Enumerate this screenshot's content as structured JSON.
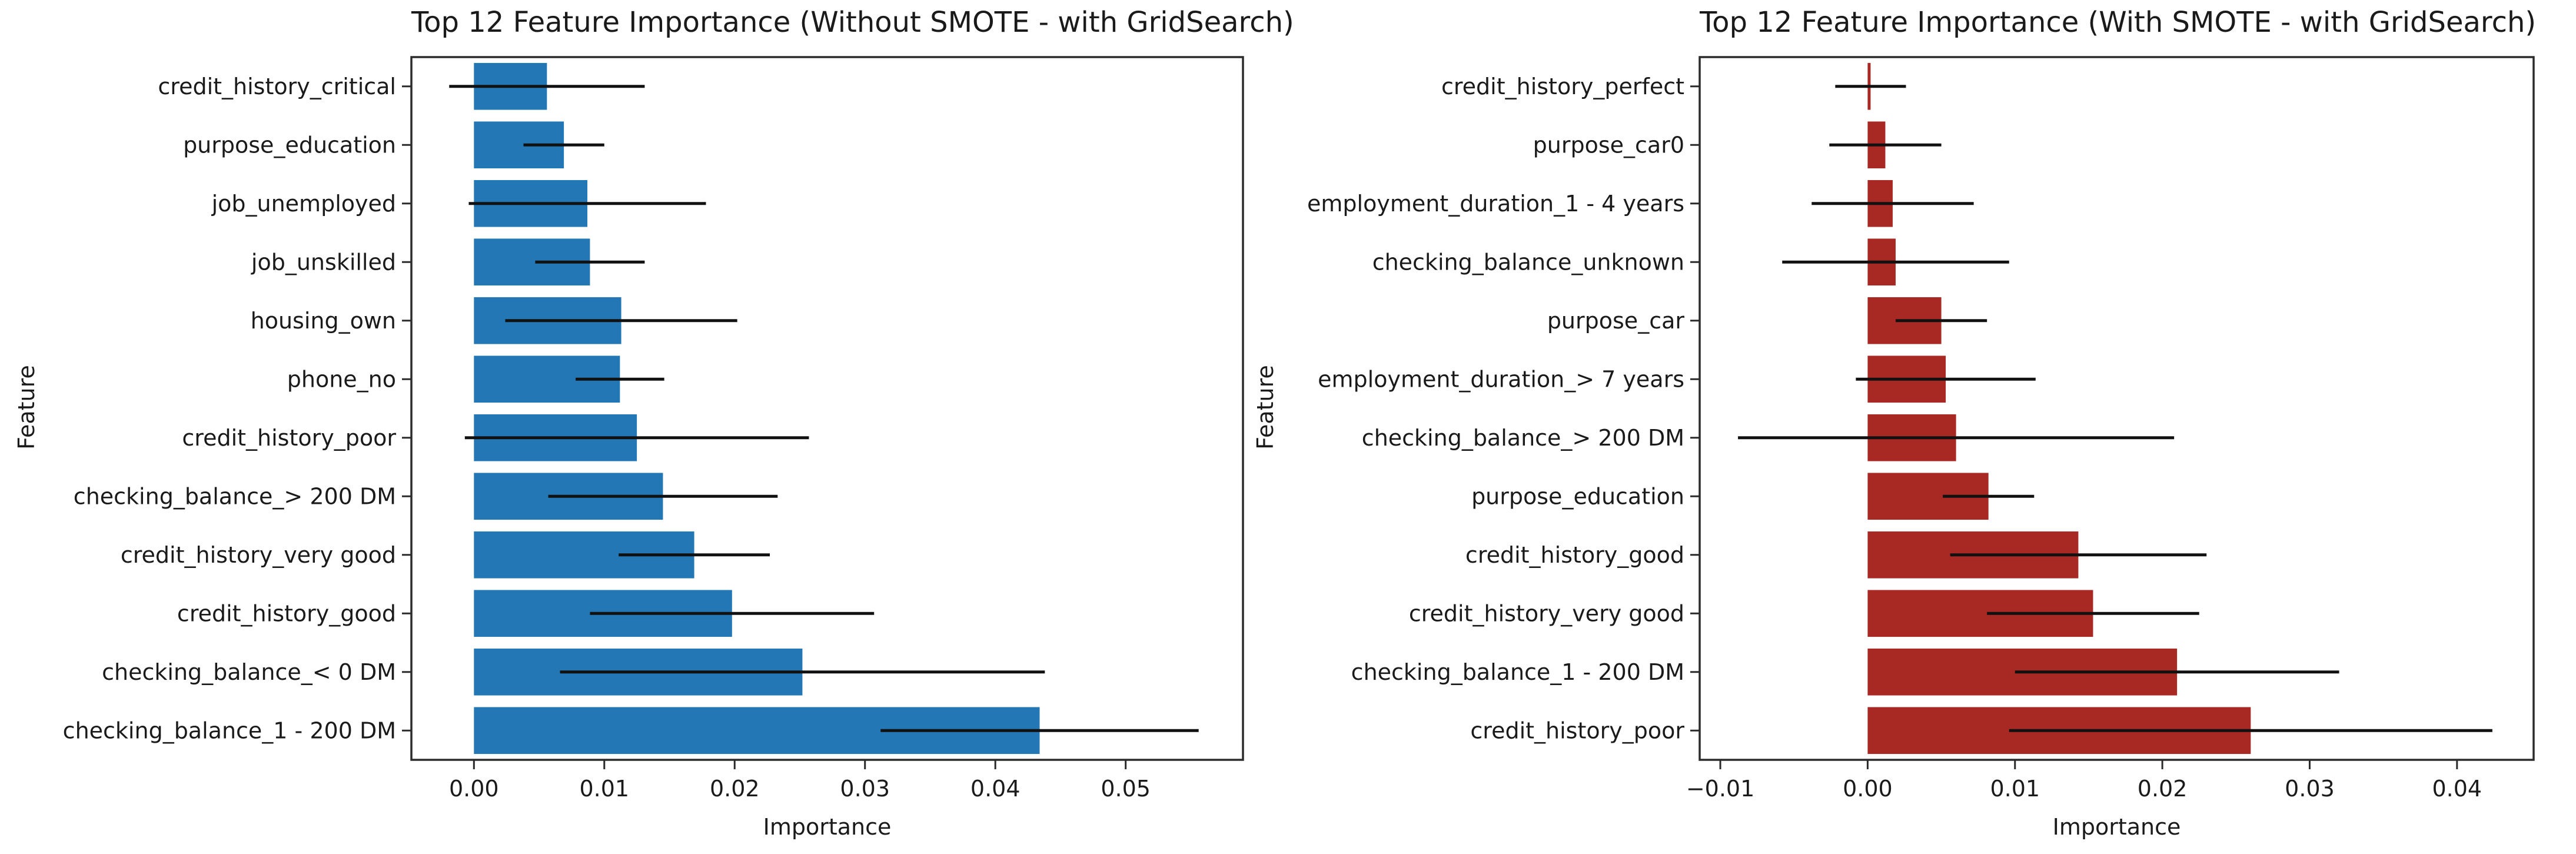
{
  "figure": {
    "background": "#ffffff",
    "text_color": "#1a1a1a",
    "spine_color": "#2b2b2b"
  },
  "chart_data": [
    {
      "type": "bar",
      "orientation": "horizontal",
      "title": "Top 12 Feature Importance (Without SMOTE - with GridSearch)",
      "xlabel": "Importance",
      "ylabel": "Feature",
      "bar_color": "#2277b4",
      "error_bar_color": "#111111",
      "grid": false,
      "legend": null,
      "xlim": [
        -0.0048,
        0.059
      ],
      "xticks": [
        {
          "value": 0.0,
          "label": "0.00"
        },
        {
          "value": 0.01,
          "label": "0.01"
        },
        {
          "value": 0.02,
          "label": "0.02"
        },
        {
          "value": 0.03,
          "label": "0.03"
        },
        {
          "value": 0.04,
          "label": "0.04"
        },
        {
          "value": 0.05,
          "label": "0.05"
        }
      ],
      "categories": [
        "credit_history_critical",
        "purpose_education",
        "job_unemployed",
        "job_unskilled",
        "housing_own",
        "phone_no",
        "credit_history_poor",
        "checking_balance_> 200 DM",
        "credit_history_very good",
        "credit_history_good",
        "checking_balance_< 0 DM",
        "checking_balance_1 - 200 DM"
      ],
      "values": [
        0.0056,
        0.0069,
        0.0087,
        0.0089,
        0.0113,
        0.0112,
        0.0125,
        0.0145,
        0.0169,
        0.0198,
        0.0252,
        0.0434
      ],
      "errors": [
        0.0075,
        0.0031,
        0.0091,
        0.0042,
        0.0089,
        0.0034,
        0.0132,
        0.0088,
        0.0058,
        0.0109,
        0.0186,
        0.0122
      ]
    },
    {
      "type": "bar",
      "orientation": "horizontal",
      "title": "Top 12 Feature Importance (With SMOTE - with GridSearch)",
      "xlabel": "Importance",
      "ylabel": "Feature",
      "bar_color": "#a82824",
      "error_bar_color": "#111111",
      "grid": false,
      "legend": null,
      "xlim": [
        -0.0114,
        0.0452
      ],
      "xticks": [
        {
          "value": -0.01,
          "label": "−0.01"
        },
        {
          "value": 0.0,
          "label": "0.00"
        },
        {
          "value": 0.01,
          "label": "0.01"
        },
        {
          "value": 0.02,
          "label": "0.02"
        },
        {
          "value": 0.03,
          "label": "0.03"
        },
        {
          "value": 0.04,
          "label": "0.04"
        }
      ],
      "categories": [
        "credit_history_perfect",
        "purpose_car0",
        "employment_duration_1 - 4 years",
        "checking_balance_unknown",
        "purpose_car",
        "employment_duration_> 7 years",
        "checking_balance_> 200 DM",
        "purpose_education",
        "credit_history_good",
        "credit_history_very good",
        "checking_balance_1 - 200 DM",
        "credit_history_poor"
      ],
      "values": [
        0.0002,
        0.0012,
        0.0017,
        0.0019,
        0.005,
        0.0053,
        0.006,
        0.0082,
        0.0143,
        0.0153,
        0.021,
        0.026
      ],
      "errors": [
        0.0024,
        0.0038,
        0.0055,
        0.0077,
        0.0031,
        0.0061,
        0.0148,
        0.0031,
        0.0087,
        0.0072,
        0.011,
        0.0164
      ]
    }
  ]
}
